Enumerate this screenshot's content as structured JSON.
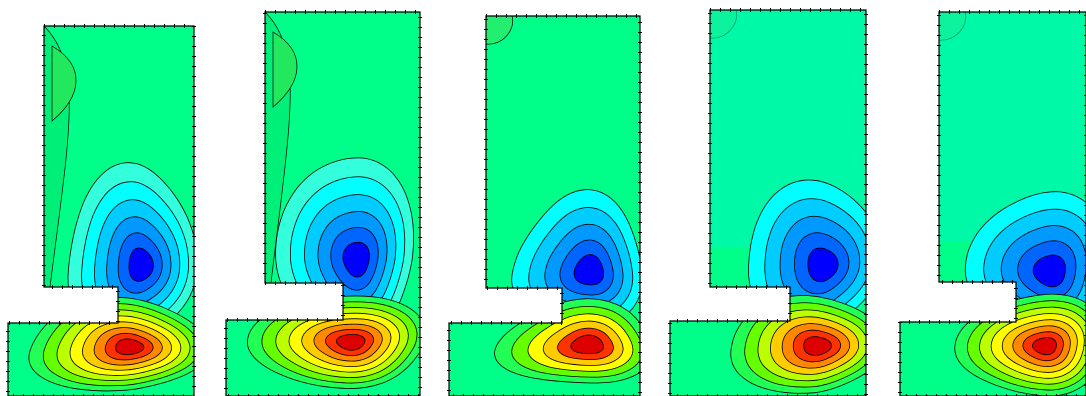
{
  "figure": {
    "panel_count": 5,
    "background": "#ffffff",
    "field_color": "#00ff88",
    "outline_color": "#000000",
    "palette": {
      "negative": [
        "#33ffdd",
        "#00ffff",
        "#00ccff",
        "#0099ff",
        "#0066ff",
        "#0000ff"
      ],
      "positive": [
        "#22ff55",
        "#66ff00",
        "#bbff00",
        "#ffff00",
        "#ffcc00",
        "#ff8800",
        "#ff3300",
        "#dd0000"
      ]
    },
    "panels": [
      {
        "id": "panel-1",
        "neg_levels": 6,
        "pos_levels": 8
      },
      {
        "id": "panel-2",
        "neg_levels": 6,
        "pos_levels": 8
      },
      {
        "id": "panel-3",
        "neg_levels": 5,
        "pos_levels": 6
      },
      {
        "id": "panel-4",
        "neg_levels": 5,
        "pos_levels": 7
      },
      {
        "id": "panel-5",
        "neg_levels": 5,
        "pos_levels": 8
      }
    ]
  }
}
